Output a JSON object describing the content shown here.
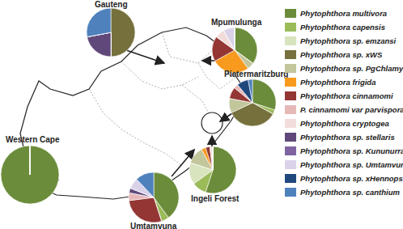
{
  "chart_data": {
    "type": "pie",
    "legend": "right",
    "categories": [
      "Phytophthora multivora",
      "Phytophthora capensis",
      "Phytophthora sp. emzansi",
      "Phytophthora sp. xWS",
      "Phytophthora sp. PgChlamydo",
      "Phytophthora frigida",
      "Phytophthora cinnamomi",
      "P. cinnamomi var parvispora",
      "Phytophthora cryptogea",
      "Phytophthora sp. stellaris",
      "Phytophthora sp. Kununurra",
      "Phytophthora sp. Umtamvuna",
      "Phytophthora sp. xHennops",
      "Phytophthora sp. canthium"
    ],
    "colors": [
      "#6b8c3a",
      "#9bbb59",
      "#d7e4bd",
      "#76703d",
      "#c3c59b",
      "#f79a1e",
      "#943634",
      "#e6b9b8",
      "#f2dcdb",
      "#60497a",
      "#8064a2",
      "#d9d2e9",
      "#1f497d",
      "#4f81bd"
    ],
    "series": [
      {
        "name": "Gauteng",
        "values": [
          0,
          0,
          0,
          50,
          0,
          0,
          0,
          0,
          0,
          22,
          0,
          0,
          0,
          28
        ]
      },
      {
        "name": "Mpumulunga",
        "values": [
          35,
          0,
          0,
          0,
          5,
          27,
          18,
          0,
          7,
          0,
          0,
          8,
          0,
          0
        ]
      },
      {
        "name": "Pietermaritzburg",
        "values": [
          30,
          3,
          0,
          35,
          10,
          0,
          8,
          3,
          0,
          0,
          0,
          0,
          8,
          3
        ]
      },
      {
        "name": "Western Cape",
        "values": [
          100,
          0,
          0,
          0,
          0,
          0,
          0,
          0,
          0,
          0,
          0,
          0,
          0,
          0
        ]
      },
      {
        "name": "Umtamvuna",
        "values": [
          40,
          5,
          0,
          0,
          0,
          0,
          28,
          5,
          0,
          3,
          0,
          7,
          0,
          12
        ]
      },
      {
        "name": "Ingeli Forest",
        "values": [
          55,
          10,
          15,
          0,
          12,
          3,
          3,
          0,
          2,
          0,
          0,
          0,
          0,
          0
        ]
      }
    ]
  }
}
